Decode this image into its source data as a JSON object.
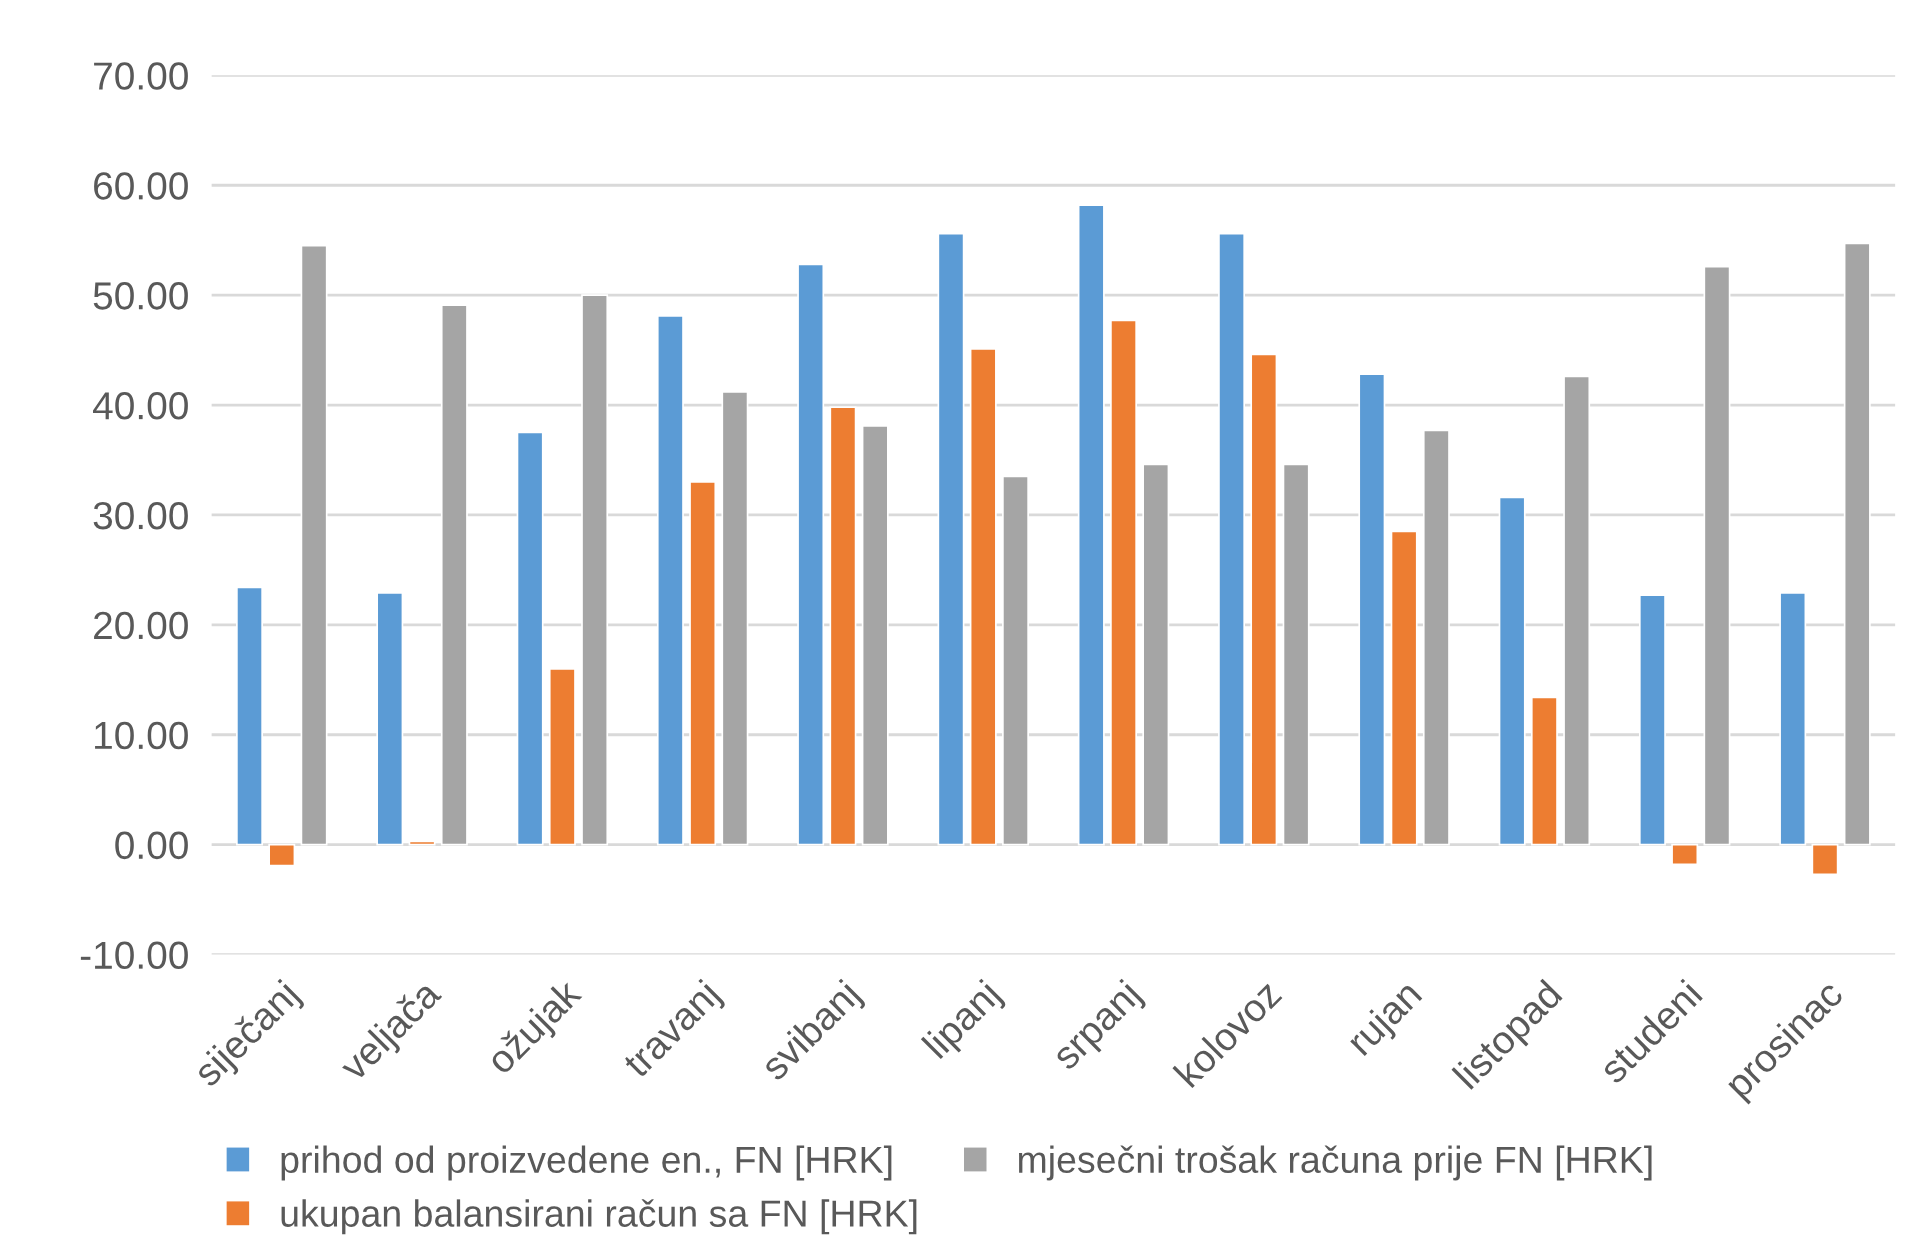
{
  "chart_data": {
    "type": "bar",
    "categories": [
      "siječanj",
      "veljača",
      "ožujak",
      "travanj",
      "svibanj",
      "lipanj",
      "srpanj",
      "kolovoz",
      "rujan",
      "listopad",
      "studeni",
      "prosinac"
    ],
    "series": [
      {
        "name": "prihod od proizvedene en., FN [HRK]",
        "color": "#5b9bd5",
        "values": [
          23.4,
          22.9,
          37.5,
          48.1,
          52.8,
          55.6,
          58.2,
          55.6,
          42.8,
          31.6,
          22.7,
          22.9
        ]
      },
      {
        "name": "ukupan balansirani račun sa FN [HRK]",
        "color": "#ed7d31",
        "values": [
          -1.9,
          0.3,
          16.0,
          33.0,
          39.8,
          45.1,
          47.7,
          44.6,
          28.5,
          13.4,
          -1.8,
          -2.7
        ]
      },
      {
        "name": "mjesečni trošak računa prije FN [HRK]",
        "color": "#a5a5a5",
        "values": [
          54.5,
          49.1,
          50.0,
          41.2,
          38.1,
          33.5,
          34.6,
          34.6,
          37.7,
          42.6,
          52.6,
          54.7
        ]
      }
    ],
    "ylim": [
      -10,
      70
    ],
    "yticks": [
      {
        "value": -10,
        "label": "-10.00"
      },
      {
        "value": 0,
        "label": "0.00"
      },
      {
        "value": 10,
        "label": "10.00"
      },
      {
        "value": 20,
        "label": "20.00"
      },
      {
        "value": 30,
        "label": "30.00"
      },
      {
        "value": 40,
        "label": "40.00"
      },
      {
        "value": 50,
        "label": "50.00"
      },
      {
        "value": 60,
        "label": "60.00"
      },
      {
        "value": 70,
        "label": "70.00"
      }
    ],
    "grid": "y",
    "legend": "bottom"
  }
}
